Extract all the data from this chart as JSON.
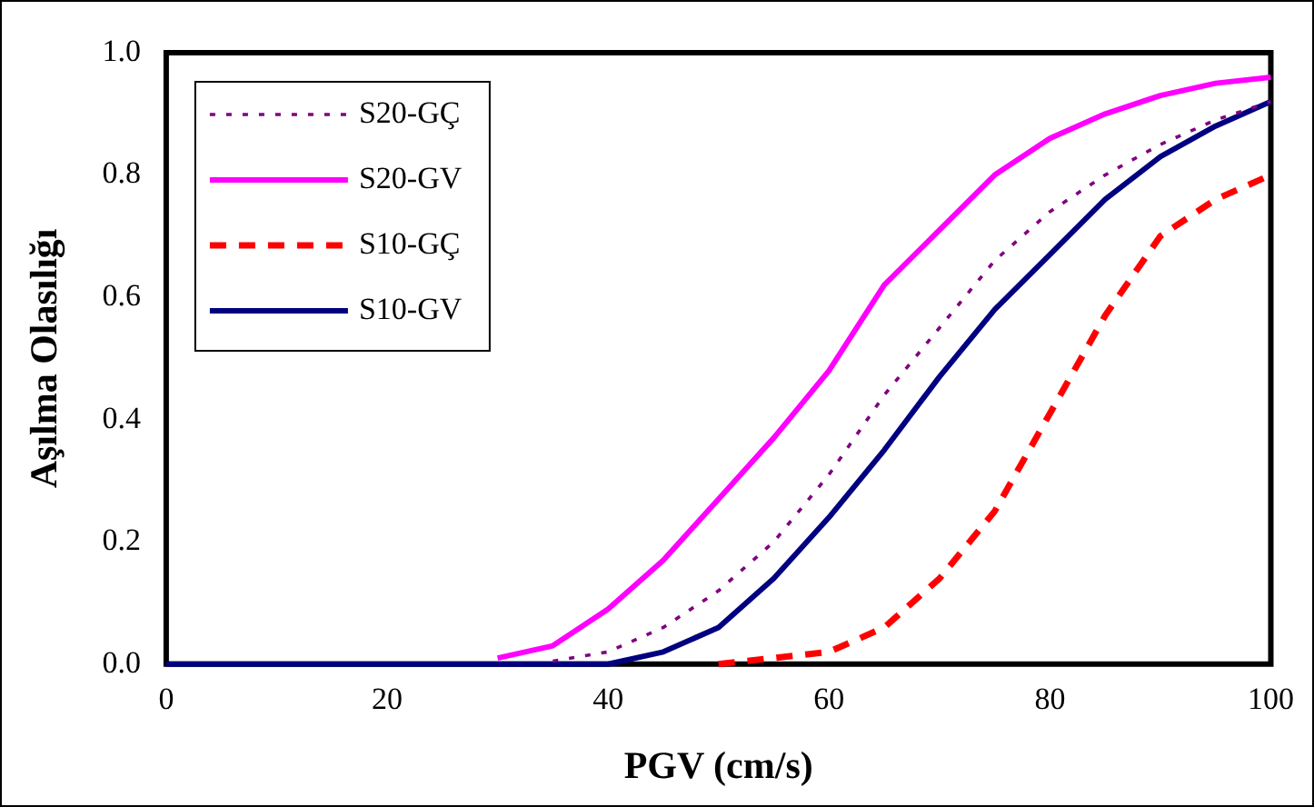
{
  "chart_data": {
    "type": "line",
    "xlabel": "PGV (cm/s)",
    "ylabel": "Aşılma Olasılığı",
    "x": [
      0,
      5,
      10,
      15,
      20,
      25,
      30,
      35,
      40,
      45,
      50,
      55,
      60,
      65,
      70,
      75,
      80,
      85,
      90,
      95,
      100
    ],
    "series": [
      {
        "name": "S20-GÇ",
        "color": "#800080",
        "line_style": "dotted",
        "values": [
          null,
          null,
          null,
          null,
          null,
          null,
          null,
          0.005,
          0.02,
          0.06,
          0.12,
          0.2,
          0.31,
          0.44,
          0.55,
          0.66,
          0.74,
          0.8,
          0.85,
          0.89,
          0.92
        ]
      },
      {
        "name": "S20-GV",
        "color": "#ff00ff",
        "line_style": "solid",
        "values": [
          null,
          null,
          null,
          null,
          null,
          null,
          0.01,
          0.03,
          0.09,
          0.17,
          0.27,
          0.37,
          0.48,
          0.62,
          0.71,
          0.8,
          0.86,
          0.9,
          0.93,
          0.95,
          0.96
        ]
      },
      {
        "name": "S10-GÇ",
        "color": "#ff0000",
        "line_style": "dashed",
        "values": [
          null,
          null,
          null,
          null,
          null,
          null,
          null,
          null,
          null,
          null,
          0,
          0.01,
          0.02,
          0.06,
          0.14,
          0.25,
          0.41,
          0.57,
          0.7,
          0.76,
          0.8
        ]
      },
      {
        "name": "S10-GV",
        "color": "#000080",
        "line_style": "solid",
        "values": [
          0,
          0,
          0,
          0,
          0,
          0,
          0,
          0,
          0,
          0.02,
          0.06,
          0.14,
          0.24,
          0.35,
          0.47,
          0.58,
          0.67,
          0.76,
          0.83,
          0.88,
          0.92
        ]
      }
    ],
    "xlim": [
      0,
      100
    ],
    "xticks": [
      0,
      20,
      40,
      60,
      80,
      100
    ],
    "ylim": [
      0,
      1
    ],
    "yticks": [
      {
        "value": 0,
        "label": "0.0"
      },
      {
        "value": 0.2,
        "label": "0.2"
      },
      {
        "value": 0.4,
        "label": "0.4"
      },
      {
        "value": 0.6,
        "label": "0.6"
      },
      {
        "value": 0.8,
        "label": "0.8"
      },
      {
        "value": 1,
        "label": "1.0"
      }
    ],
    "grid": false,
    "legend": "top left",
    "marker": "none"
  }
}
